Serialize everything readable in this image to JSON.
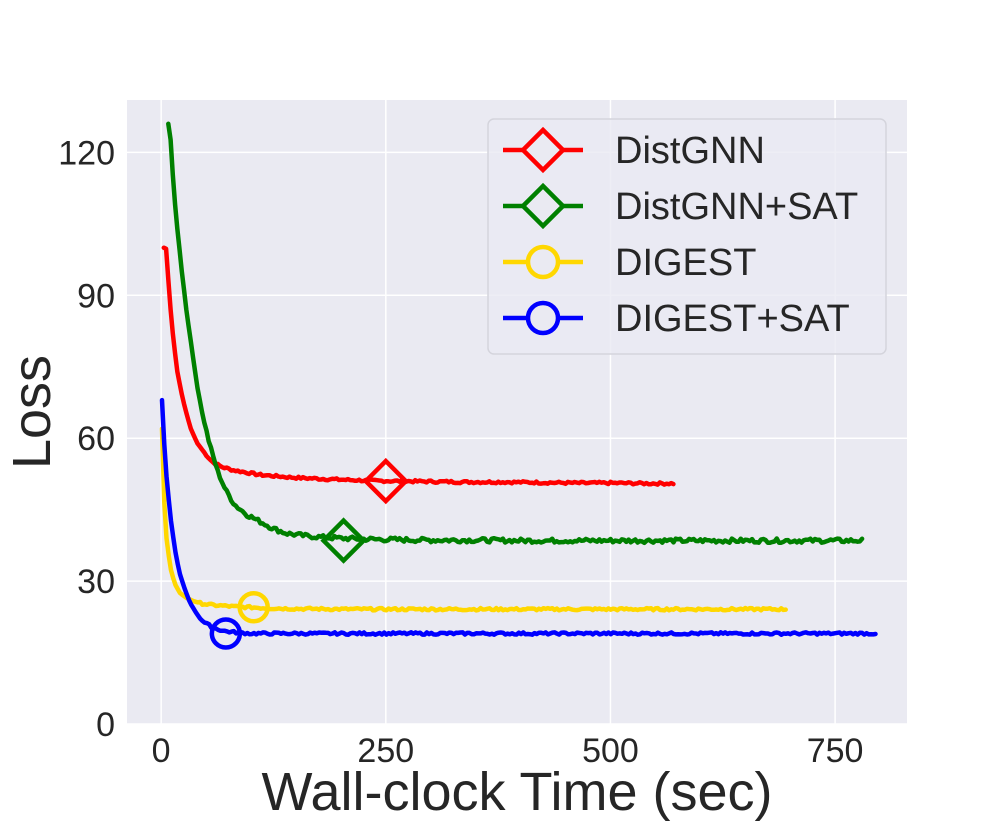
{
  "chart_data": {
    "type": "line",
    "title": "",
    "xlabel": "Wall-clock Time (sec)",
    "ylabel": "Loss",
    "xlim": [
      -38,
      830
    ],
    "ylim": [
      0,
      131
    ],
    "xticks": [
      0,
      250,
      500,
      750
    ],
    "yticks": [
      0,
      30,
      60,
      90,
      120
    ],
    "grid": true,
    "legend_position": "top-right",
    "background": "#EAEAF2",
    "series": [
      {
        "name": "DistGNN",
        "color": "#FF0000",
        "marker": "diamond",
        "marker_at": [
          250,
          51
        ],
        "x": [
          3,
          5,
          7,
          10,
          14,
          18,
          22,
          27,
          33,
          40,
          48,
          57,
          67,
          80,
          95,
          110,
          130,
          150,
          175,
          200,
          230,
          260,
          300,
          340,
          380,
          420,
          460,
          500,
          540,
          570
        ],
        "y": [
          100,
          101,
          96,
          88,
          80,
          74,
          70,
          66,
          62,
          59,
          57,
          55,
          54,
          53.3,
          52.8,
          52.3,
          52,
          51.7,
          51.5,
          51.3,
          51.1,
          51,
          50.9,
          50.8,
          50.8,
          50.7,
          50.6,
          50.6,
          50.5,
          50.5
        ]
      },
      {
        "name": "DistGNN+SAT",
        "color": "#008000",
        "marker": "diamond",
        "marker_at": [
          203,
          38.5
        ],
        "x": [
          8,
          11,
          14,
          18,
          23,
          28,
          34,
          40,
          47,
          55,
          63,
          72,
          82,
          95,
          110,
          125,
          140,
          160,
          180,
          200,
          230,
          260,
          300,
          350,
          400,
          450,
          500,
          550,
          600,
          650,
          700,
          750,
          780
        ],
        "y": [
          126,
          122,
          112,
          104,
          95,
          87,
          79,
          71,
          64,
          58,
          53,
          49,
          46,
          44,
          42.5,
          41,
          40,
          39.5,
          39.2,
          39,
          38.8,
          38.7,
          38.6,
          38.6,
          38.5,
          38.5,
          38.5,
          38.5,
          38.5,
          38.5,
          38.5,
          38.5,
          38.5
        ]
      },
      {
        "name": "DIGEST",
        "color": "#FFD700",
        "marker": "circle",
        "marker_at": [
          103,
          24.5
        ],
        "x": [
          1,
          3,
          6,
          10,
          15,
          21,
          28,
          36,
          45,
          55,
          70,
          85,
          100,
          120,
          150,
          200,
          250,
          300,
          350,
          400,
          450,
          500,
          550,
          600,
          650,
          695
        ],
        "y": [
          62,
          48,
          39,
          33,
          29.5,
          27.5,
          26.5,
          25.8,
          25.3,
          25,
          24.8,
          24.6,
          24.5,
          24.3,
          24.2,
          24.1,
          24.1,
          24.1,
          24.1,
          24.1,
          24.1,
          24.1,
          24.1,
          24.1,
          24.1,
          24.1
        ]
      },
      {
        "name": "DIGEST+SAT",
        "color": "#0000FF",
        "marker": "circle",
        "marker_at": [
          72,
          19
        ],
        "x": [
          1,
          3,
          6,
          10,
          15,
          20,
          26,
          32,
          40,
          48,
          58,
          70,
          85,
          100,
          130,
          170,
          220,
          280,
          350,
          420,
          500,
          580,
          660,
          740,
          795
        ],
        "y": [
          68,
          60,
          52,
          44,
          37,
          32,
          28.5,
          25.5,
          23,
          21.3,
          20.2,
          19.5,
          19.2,
          19,
          19,
          19,
          19,
          19,
          19,
          19,
          19,
          19,
          19,
          19,
          19
        ]
      }
    ]
  }
}
